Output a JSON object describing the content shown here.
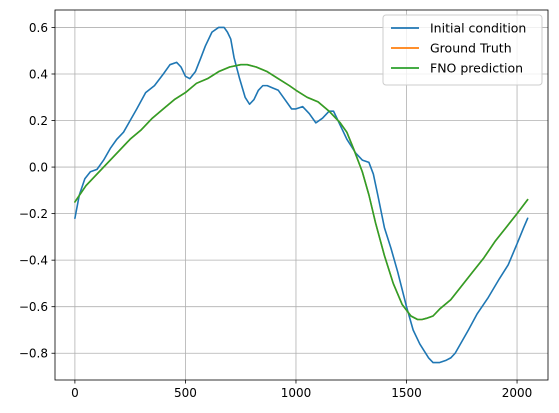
{
  "chart_data": {
    "type": "line",
    "title": "",
    "xlabel": "",
    "ylabel": "",
    "xlim": [
      -90,
      2140
    ],
    "ylim": [
      -0.915,
      0.675
    ],
    "xticks": [
      0,
      500,
      1000,
      1500,
      2000
    ],
    "yticks": [
      -0.8,
      -0.6,
      -0.4,
      -0.2,
      0.0,
      0.2,
      0.4,
      0.6
    ],
    "xtick_labels": [
      "0",
      "500",
      "1000",
      "1500",
      "2000"
    ],
    "ytick_labels": [
      "−0.8",
      "−0.6",
      "−0.4",
      "−0.2",
      "0.0",
      "0.2",
      "0.4",
      "0.6"
    ],
    "grid": true,
    "legend_position": "top-right",
    "series": [
      {
        "name": "Initial condition",
        "color": "#1f77b4",
        "x": [
          0,
          20,
          45,
          70,
          100,
          130,
          160,
          190,
          220,
          250,
          280,
          320,
          360,
          400,
          430,
          460,
          480,
          500,
          520,
          545,
          570,
          590,
          620,
          650,
          675,
          690,
          705,
          720,
          745,
          770,
          790,
          810,
          830,
          850,
          870,
          895,
          920,
          950,
          980,
          1000,
          1030,
          1060,
          1090,
          1120,
          1150,
          1170,
          1190,
          1210,
          1230,
          1250,
          1270,
          1300,
          1330,
          1350,
          1370,
          1400,
          1430,
          1460,
          1500,
          1530,
          1560,
          1580,
          1600,
          1620,
          1650,
          1680,
          1700,
          1720,
          1750,
          1780,
          1820,
          1870,
          1920,
          1960,
          2000,
          2030,
          2048
        ],
        "y": [
          -0.22,
          -0.12,
          -0.05,
          -0.02,
          -0.01,
          0.03,
          0.08,
          0.12,
          0.15,
          0.2,
          0.25,
          0.32,
          0.35,
          0.4,
          0.44,
          0.45,
          0.43,
          0.39,
          0.38,
          0.41,
          0.47,
          0.52,
          0.58,
          0.6,
          0.6,
          0.58,
          0.55,
          0.47,
          0.38,
          0.3,
          0.27,
          0.29,
          0.33,
          0.35,
          0.35,
          0.34,
          0.33,
          0.29,
          0.25,
          0.25,
          0.26,
          0.23,
          0.19,
          0.21,
          0.24,
          0.24,
          0.2,
          0.16,
          0.12,
          0.09,
          0.06,
          0.03,
          0.02,
          -0.03,
          -0.12,
          -0.26,
          -0.35,
          -0.45,
          -0.6,
          -0.7,
          -0.76,
          -0.79,
          -0.82,
          -0.84,
          -0.84,
          -0.83,
          -0.82,
          -0.8,
          -0.75,
          -0.7,
          -0.63,
          -0.56,
          -0.48,
          -0.42,
          -0.33,
          -0.26,
          -0.22
        ]
      },
      {
        "name": "Ground Truth",
        "color": "#ff7f0e",
        "x": [
          0,
          50,
          100,
          150,
          200,
          250,
          300,
          350,
          400,
          450,
          500,
          550,
          600,
          650,
          700,
          750,
          780,
          820,
          870,
          920,
          970,
          1000,
          1050,
          1100,
          1150,
          1200,
          1230,
          1260,
          1300,
          1330,
          1360,
          1400,
          1440,
          1480,
          1520,
          1550,
          1570,
          1590,
          1620,
          1650,
          1700,
          1750,
          1800,
          1850,
          1900,
          1950,
          2000,
          2048
        ],
        "y": [
          -0.15,
          -0.08,
          -0.03,
          0.02,
          0.07,
          0.12,
          0.16,
          0.21,
          0.25,
          0.29,
          0.32,
          0.36,
          0.38,
          0.41,
          0.43,
          0.44,
          0.44,
          0.43,
          0.41,
          0.38,
          0.35,
          0.33,
          0.3,
          0.28,
          0.24,
          0.19,
          0.15,
          0.08,
          -0.02,
          -0.12,
          -0.24,
          -0.38,
          -0.5,
          -0.59,
          -0.64,
          -0.655,
          -0.655,
          -0.65,
          -0.64,
          -0.61,
          -0.57,
          -0.51,
          -0.45,
          -0.39,
          -0.32,
          -0.26,
          -0.2,
          -0.14
        ]
      },
      {
        "name": "FNO prediction",
        "color": "#2ca02c",
        "x": [
          0,
          50,
          100,
          150,
          200,
          250,
          300,
          350,
          400,
          450,
          500,
          550,
          600,
          650,
          700,
          750,
          780,
          820,
          870,
          920,
          970,
          1000,
          1050,
          1100,
          1150,
          1200,
          1230,
          1260,
          1300,
          1330,
          1360,
          1400,
          1440,
          1480,
          1520,
          1550,
          1570,
          1590,
          1620,
          1650,
          1700,
          1750,
          1800,
          1850,
          1900,
          1950,
          2000,
          2048
        ],
        "y": [
          -0.15,
          -0.08,
          -0.03,
          0.02,
          0.07,
          0.12,
          0.16,
          0.21,
          0.25,
          0.29,
          0.32,
          0.36,
          0.38,
          0.41,
          0.43,
          0.44,
          0.44,
          0.43,
          0.41,
          0.38,
          0.35,
          0.33,
          0.3,
          0.28,
          0.24,
          0.19,
          0.15,
          0.08,
          -0.02,
          -0.12,
          -0.24,
          -0.38,
          -0.5,
          -0.59,
          -0.64,
          -0.655,
          -0.655,
          -0.65,
          -0.64,
          -0.61,
          -0.57,
          -0.51,
          -0.45,
          -0.39,
          -0.32,
          -0.26,
          -0.2,
          -0.14
        ]
      }
    ]
  }
}
